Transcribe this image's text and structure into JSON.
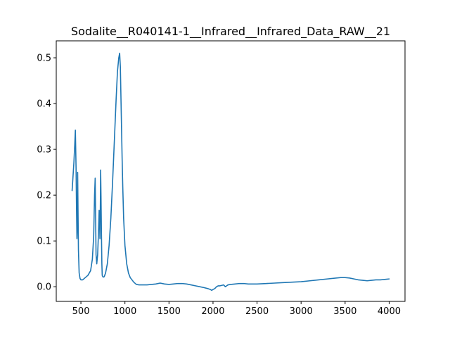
{
  "chart_data": {
    "type": "line",
    "title": "Sodalite__R040141-1__Infrared__Infrared_Data_RAW__21",
    "xlabel": "",
    "ylabel": "",
    "xlim": [
      220,
      4180
    ],
    "ylim": [
      -0.032,
      0.537
    ],
    "xticks": [
      500,
      1000,
      1500,
      2000,
      2500,
      3000,
      3500,
      4000
    ],
    "yticks": [
      0.0,
      0.1,
      0.2,
      0.3,
      0.4,
      0.5
    ],
    "grid": false,
    "series": [
      {
        "color": "#1f77b4",
        "x": [
          400,
          410,
          420,
          430,
          437,
          445,
          450,
          455,
          460,
          463,
          467,
          472,
          480,
          490,
          500,
          520,
          550,
          580,
          610,
          630,
          645,
          655,
          662,
          667,
          672,
          680,
          690,
          700,
          707,
          712,
          716,
          720,
          724,
          728,
          733,
          738,
          742,
          748,
          755,
          765,
          780,
          800,
          820,
          840,
          860,
          880,
          900,
          915,
          930,
          940,
          948,
          953,
          958,
          963,
          968,
          975,
          985,
          1000,
          1020,
          1040,
          1060,
          1080,
          1100,
          1130,
          1160,
          1200,
          1250,
          1300,
          1350,
          1400,
          1450,
          1500,
          1550,
          1600,
          1650,
          1700,
          1750,
          1800,
          1850,
          1900,
          1940,
          1970,
          1985,
          2000,
          2020,
          2040,
          2060,
          2080,
          2100,
          2120,
          2140,
          2155,
          2170,
          2200,
          2250,
          2300,
          2350,
          2400,
          2500,
          2600,
          2700,
          2800,
          2900,
          3000,
          3100,
          3200,
          3300,
          3400,
          3450,
          3500,
          3550,
          3600,
          3650,
          3700,
          3750,
          3800,
          3850,
          3900,
          3950,
          4000
        ],
        "y": [
          0.21,
          0.24,
          0.27,
          0.31,
          0.342,
          0.26,
          0.17,
          0.105,
          0.14,
          0.25,
          0.17,
          0.08,
          0.03,
          0.018,
          0.015,
          0.015,
          0.02,
          0.025,
          0.035,
          0.06,
          0.11,
          0.2,
          0.237,
          0.15,
          0.07,
          0.05,
          0.07,
          0.12,
          0.167,
          0.14,
          0.105,
          0.16,
          0.255,
          0.2,
          0.12,
          0.05,
          0.025,
          0.022,
          0.021,
          0.022,
          0.03,
          0.05,
          0.09,
          0.15,
          0.23,
          0.32,
          0.41,
          0.47,
          0.5,
          0.51,
          0.48,
          0.43,
          0.38,
          0.33,
          0.28,
          0.22,
          0.15,
          0.09,
          0.05,
          0.03,
          0.02,
          0.015,
          0.01,
          0.005,
          0.004,
          0.004,
          0.004,
          0.005,
          0.006,
          0.008,
          0.006,
          0.005,
          0.006,
          0.007,
          0.007,
          0.006,
          0.004,
          0.002,
          0.0,
          -0.002,
          -0.004,
          -0.006,
          -0.008,
          -0.006,
          -0.004,
          0.0,
          0.002,
          0.002,
          0.003,
          0.004,
          0.0,
          0.002,
          0.004,
          0.005,
          0.006,
          0.007,
          0.007,
          0.006,
          0.006,
          0.007,
          0.008,
          0.009,
          0.01,
          0.011,
          0.013,
          0.015,
          0.017,
          0.019,
          0.02,
          0.02,
          0.019,
          0.017,
          0.015,
          0.014,
          0.013,
          0.014,
          0.015,
          0.015,
          0.016,
          0.017
        ]
      }
    ]
  }
}
